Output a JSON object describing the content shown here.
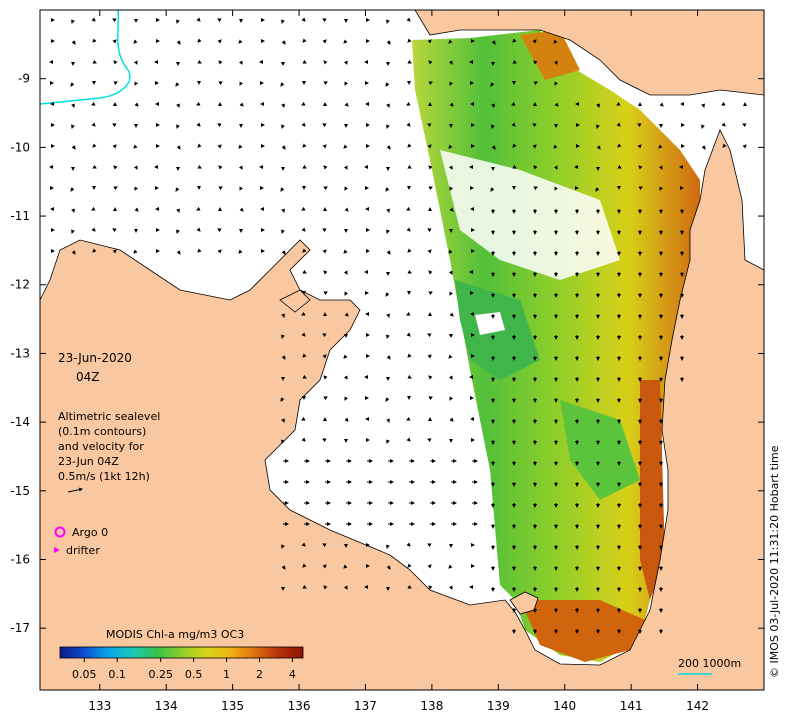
{
  "map": {
    "date_label": "23-Jun-2020",
    "time_label": "04Z",
    "legend_text": [
      "Altimetric sealevel",
      "(0.1m contours)",
      "and velocity for",
      "23-Jun 04Z",
      "0.5m/s (1kt 12h)"
    ],
    "markers": [
      {
        "label": "Argo 0",
        "color": "#ff00ff",
        "shape": "ring"
      },
      {
        "label": "drifter",
        "color": "#ff00ff",
        "shape": "triangle"
      }
    ],
    "colorbar": {
      "title": "MODIS Chl-a mg/m3 OC3",
      "ticks": [
        "0.05",
        "0.1",
        "0.25",
        "0.5",
        "1",
        "2",
        "4"
      ],
      "tick_values": [
        0.05,
        0.1,
        0.25,
        0.5,
        1,
        2,
        4
      ],
      "range": [
        0.03,
        5
      ],
      "colors": [
        "#0b1a86",
        "#0d4fd0",
        "#0aa6e8",
        "#18c9b4",
        "#35c24a",
        "#8fcf2a",
        "#d7d61a",
        "#f0b415",
        "#e0710f",
        "#b83108",
        "#8a1400"
      ]
    },
    "scale_label": "200  1000m",
    "credit": "© IMOS 03-Jul-2020 11:31:20 Hobart time",
    "axes": {
      "lon_ticks": [
        "133",
        "134",
        "135",
        "136",
        "137",
        "138",
        "139",
        "140",
        "141",
        "142"
      ],
      "lon_values": [
        133,
        134,
        135,
        136,
        137,
        138,
        139,
        140,
        141,
        142
      ],
      "lat_ticks": [
        "-9",
        "-10",
        "-11",
        "-12",
        "-13",
        "-14",
        "-15",
        "-16",
        "-17"
      ],
      "lat_values": [
        -9,
        -10,
        -11,
        -12,
        -13,
        -14,
        -15,
        -16,
        -17
      ],
      "lon_range": [
        132.1,
        143.0
      ],
      "lat_range": [
        -17.9,
        -8.0
      ]
    },
    "colors": {
      "land": "#fac8a0",
      "ocean": "#ffffff",
      "contour": "#00e0e0",
      "arrow": "#000000"
    }
  }
}
